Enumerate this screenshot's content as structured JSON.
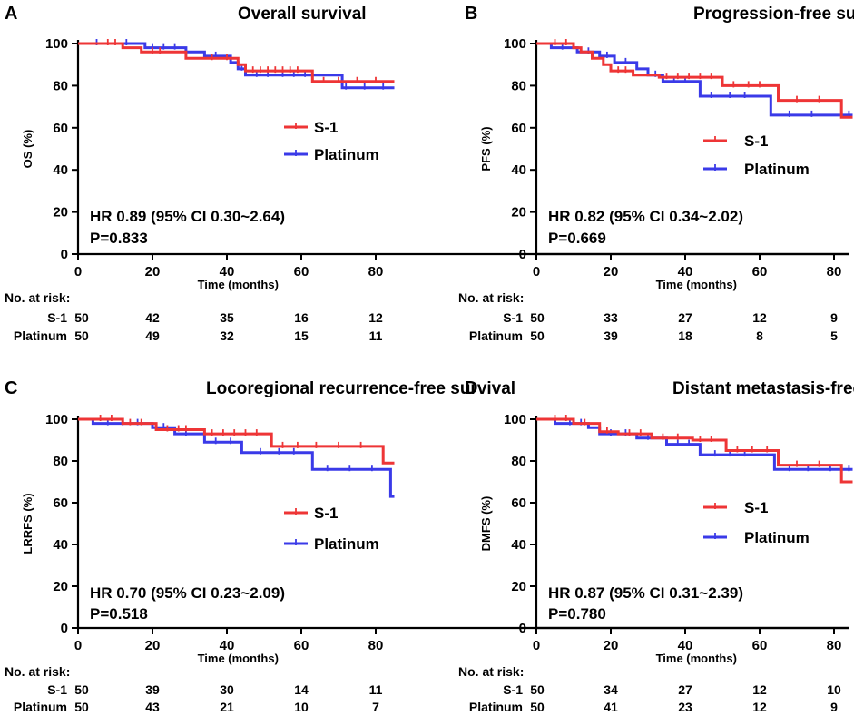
{
  "figure": {
    "x_axis": {
      "label": "Time (months)",
      "range": [
        0,
        85
      ],
      "ticks": [
        0,
        20,
        40,
        60,
        80
      ]
    },
    "y_axis": {
      "range": [
        0,
        100
      ],
      "ticks": [
        0,
        20,
        40,
        60,
        80,
        100
      ]
    },
    "risk_table_title": "No. at risk:",
    "risk_timepoints": [
      0,
      20,
      40,
      60,
      80
    ],
    "colors": {
      "S-1": "#ee3536",
      "Platinum": "#3a3ae8"
    }
  },
  "chart_data": [
    {
      "type": "line",
      "panel": "A",
      "title": "Overall survival",
      "ylabel": "OS (%)",
      "xlabel": "Time (months)",
      "xlim": [
        0,
        85
      ],
      "ylim": [
        0,
        100
      ],
      "hr_text": "HR 0.89 (95% CI 0.30~2.64)",
      "p_text": "P=0.833",
      "legend_position": "right-middle",
      "series": [
        {
          "name": "S-1",
          "color": "#ee3536",
          "steps": [
            [
              0,
              100
            ],
            [
              12,
              98
            ],
            [
              17,
              96
            ],
            [
              29,
              93
            ],
            [
              43,
              90
            ],
            [
              45,
              87
            ],
            [
              63,
              82
            ],
            [
              85,
              82
            ]
          ],
          "censored": [
            [
              8,
              100
            ],
            [
              10,
              100
            ],
            [
              20,
              96
            ],
            [
              22,
              96
            ],
            [
              36,
              93
            ],
            [
              40,
              93
            ],
            [
              47,
              87
            ],
            [
              49,
              87
            ],
            [
              51,
              87
            ],
            [
              53,
              87
            ],
            [
              55,
              87
            ],
            [
              57,
              87
            ],
            [
              59,
              87
            ],
            [
              66,
              82
            ],
            [
              70,
              82
            ],
            [
              75,
              82
            ],
            [
              80,
              82
            ]
          ],
          "at_risk": [
            50,
            42,
            35,
            16,
            12
          ]
        },
        {
          "name": "Platinum",
          "color": "#3a3ae8",
          "steps": [
            [
              0,
              100
            ],
            [
              18,
              98
            ],
            [
              29,
              96
            ],
            [
              34,
              94
            ],
            [
              41,
              91
            ],
            [
              43,
              88
            ],
            [
              45,
              85
            ],
            [
              64,
              85
            ],
            [
              71,
              79
            ],
            [
              85,
              79
            ]
          ],
          "censored": [
            [
              5,
              100
            ],
            [
              13,
              100
            ],
            [
              20,
              98
            ],
            [
              23,
              98
            ],
            [
              26,
              98
            ],
            [
              37,
              94
            ],
            [
              44,
              88
            ],
            [
              48,
              85
            ],
            [
              51,
              85
            ],
            [
              55,
              85
            ],
            [
              58,
              85
            ],
            [
              61,
              85
            ],
            [
              72,
              79
            ],
            [
              77,
              79
            ],
            [
              82,
              79
            ]
          ],
          "at_risk": [
            50,
            49,
            32,
            15,
            11
          ]
        }
      ]
    },
    {
      "type": "line",
      "panel": "B",
      "title": "Progression-free survival",
      "ylabel": "PFS (%)",
      "xlabel": "Time (months)",
      "xlim": [
        0,
        85
      ],
      "ylim": [
        0,
        100
      ],
      "hr_text": "HR 0.82 (95% CI 0.34~2.02)",
      "p_text": "P=0.669",
      "legend_position": "right-middle",
      "series": [
        {
          "name": "S-1",
          "color": "#ee3536",
          "steps": [
            [
              0,
              100
            ],
            [
              10,
              98
            ],
            [
              12,
              96
            ],
            [
              15,
              93
            ],
            [
              18,
              90
            ],
            [
              20,
              87
            ],
            [
              26,
              85
            ],
            [
              33,
              84
            ],
            [
              50,
              80
            ],
            [
              65,
              73
            ],
            [
              82,
              65
            ],
            [
              85,
              65
            ]
          ],
          "censored": [
            [
              5,
              100
            ],
            [
              8,
              100
            ],
            [
              22,
              87
            ],
            [
              24,
              87
            ],
            [
              35,
              84
            ],
            [
              38,
              84
            ],
            [
              41,
              84
            ],
            [
              44,
              84
            ],
            [
              47,
              84
            ],
            [
              53,
              80
            ],
            [
              57,
              80
            ],
            [
              60,
              80
            ],
            [
              70,
              73
            ],
            [
              76,
              73
            ]
          ],
          "at_risk": [
            50,
            33,
            27,
            12,
            9
          ]
        },
        {
          "name": "Platinum",
          "color": "#3a3ae8",
          "steps": [
            [
              0,
              100
            ],
            [
              4,
              98
            ],
            [
              11,
              96
            ],
            [
              17,
              94
            ],
            [
              21,
              91
            ],
            [
              27,
              88
            ],
            [
              30,
              85
            ],
            [
              34,
              82
            ],
            [
              44,
              75
            ],
            [
              63,
              66
            ],
            [
              85,
              66
            ]
          ],
          "censored": [
            [
              7,
              98
            ],
            [
              14,
              96
            ],
            [
              19,
              94
            ],
            [
              24,
              91
            ],
            [
              32,
              85
            ],
            [
              37,
              82
            ],
            [
              40,
              82
            ],
            [
              47,
              75
            ],
            [
              52,
              75
            ],
            [
              56,
              75
            ],
            [
              68,
              66
            ],
            [
              74,
              66
            ],
            [
              84,
              66
            ]
          ],
          "at_risk": [
            50,
            39,
            18,
            8,
            5
          ]
        }
      ]
    },
    {
      "type": "line",
      "panel": "C",
      "title": "Locoregional recurrence-free survival",
      "ylabel": "LRRFS (%)",
      "xlabel": "Time (months)",
      "xlim": [
        0,
        85
      ],
      "ylim": [
        0,
        100
      ],
      "hr_text": "HR 0.70 (95% CI 0.23~2.09)",
      "p_text": "P=0.518",
      "legend_position": "right-middle",
      "series": [
        {
          "name": "S-1",
          "color": "#ee3536",
          "steps": [
            [
              0,
              100
            ],
            [
              12,
              98
            ],
            [
              21,
              95
            ],
            [
              34,
              93
            ],
            [
              52,
              87
            ],
            [
              82,
              79
            ],
            [
              85,
              79
            ]
          ],
          "censored": [
            [
              6,
              100
            ],
            [
              9,
              100
            ],
            [
              14,
              98
            ],
            [
              17,
              98
            ],
            [
              24,
              95
            ],
            [
              27,
              95
            ],
            [
              29,
              95
            ],
            [
              36,
              93
            ],
            [
              39,
              93
            ],
            [
              42,
              93
            ],
            [
              45,
              93
            ],
            [
              48,
              93
            ],
            [
              55,
              87
            ],
            [
              59,
              87
            ],
            [
              64,
              87
            ],
            [
              70,
              87
            ],
            [
              76,
              87
            ]
          ],
          "at_risk": [
            50,
            39,
            30,
            14,
            11
          ]
        },
        {
          "name": "Platinum",
          "color": "#3a3ae8",
          "steps": [
            [
              0,
              100
            ],
            [
              4,
              98
            ],
            [
              20,
              96
            ],
            [
              26,
              93
            ],
            [
              34,
              89
            ],
            [
              44,
              84
            ],
            [
              63,
              76
            ],
            [
              84,
              63
            ],
            [
              85,
              63
            ]
          ],
          "censored": [
            [
              8,
              98
            ],
            [
              12,
              98
            ],
            [
              16,
              98
            ],
            [
              23,
              96
            ],
            [
              29,
              93
            ],
            [
              37,
              89
            ],
            [
              41,
              89
            ],
            [
              49,
              84
            ],
            [
              54,
              84
            ],
            [
              58,
              84
            ],
            [
              67,
              76
            ],
            [
              73,
              76
            ],
            [
              79,
              76
            ]
          ],
          "at_risk": [
            50,
            43,
            21,
            10,
            7
          ]
        }
      ]
    },
    {
      "type": "line",
      "panel": "D",
      "title": "Distant metastasis-free survival",
      "ylabel": "DMFS (%)",
      "xlabel": "Time (months)",
      "xlim": [
        0,
        85
      ],
      "ylim": [
        0,
        100
      ],
      "hr_text": "HR 0.87 (95% CI 0.31~2.39)",
      "p_text": "P=0.780",
      "legend_position": "right-middle",
      "series": [
        {
          "name": "S-1",
          "color": "#ee3536",
          "steps": [
            [
              0,
              100
            ],
            [
              10,
              98
            ],
            [
              17,
              94
            ],
            [
              22,
              93
            ],
            [
              31,
              91
            ],
            [
              42,
              90
            ],
            [
              51,
              85
            ],
            [
              65,
              78
            ],
            [
              82,
              70
            ],
            [
              85,
              70
            ]
          ],
          "censored": [
            [
              5,
              100
            ],
            [
              8,
              100
            ],
            [
              13,
              98
            ],
            [
              19,
              94
            ],
            [
              25,
              93
            ],
            [
              28,
              93
            ],
            [
              34,
              91
            ],
            [
              38,
              91
            ],
            [
              44,
              90
            ],
            [
              47,
              90
            ],
            [
              54,
              85
            ],
            [
              58,
              85
            ],
            [
              62,
              85
            ],
            [
              70,
              78
            ],
            [
              76,
              78
            ]
          ],
          "at_risk": [
            50,
            34,
            27,
            12,
            10
          ]
        },
        {
          "name": "Platinum",
          "color": "#3a3ae8",
          "steps": [
            [
              0,
              100
            ],
            [
              5,
              98
            ],
            [
              14,
              96
            ],
            [
              17,
              93
            ],
            [
              27,
              91
            ],
            [
              35,
              88
            ],
            [
              44,
              83
            ],
            [
              64,
              76
            ],
            [
              85,
              76
            ]
          ],
          "censored": [
            [
              9,
              98
            ],
            [
              12,
              98
            ],
            [
              20,
              93
            ],
            [
              24,
              93
            ],
            [
              30,
              91
            ],
            [
              38,
              88
            ],
            [
              41,
              88
            ],
            [
              48,
              83
            ],
            [
              52,
              83
            ],
            [
              56,
              83
            ],
            [
              68,
              76
            ],
            [
              73,
              76
            ],
            [
              79,
              76
            ],
            [
              84,
              76
            ]
          ],
          "at_risk": [
            50,
            41,
            23,
            12,
            9
          ]
        }
      ]
    }
  ]
}
